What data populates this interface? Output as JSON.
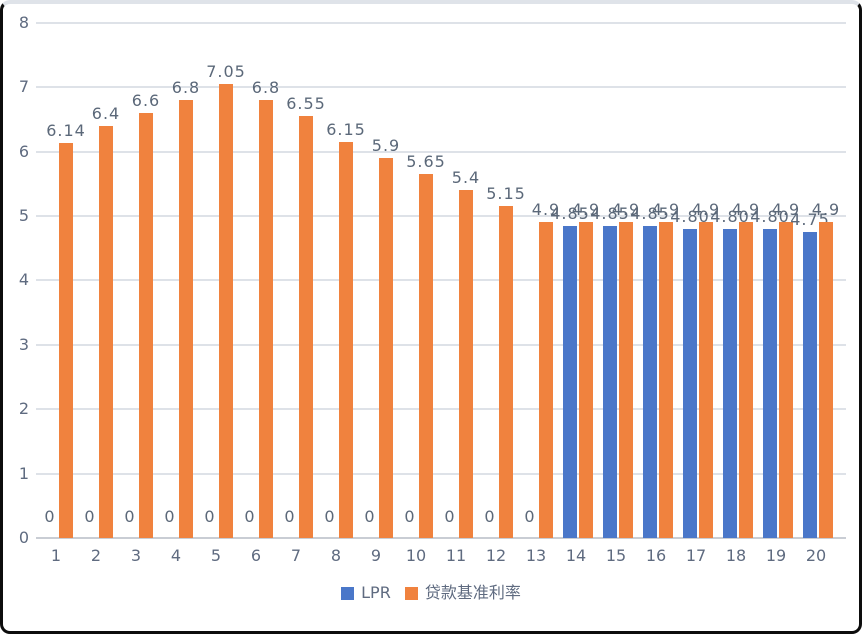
{
  "chart_data": {
    "type": "bar",
    "title": "",
    "xlabel": "",
    "ylabel": "",
    "categories": [
      "1",
      "2",
      "3",
      "4",
      "5",
      "6",
      "7",
      "8",
      "9",
      "10",
      "11",
      "12",
      "13",
      "14",
      "15",
      "16",
      "17",
      "18",
      "19",
      "20"
    ],
    "series": [
      {
        "name": "LPR",
        "color": "#4a77c9",
        "values": [
          0,
          0,
          0,
          0,
          0,
          0,
          0,
          0,
          0,
          0,
          0,
          0,
          0,
          4.85,
          4.85,
          4.85,
          4.8,
          4.8,
          4.8,
          4.75
        ],
        "labels": [
          "0",
          "0",
          "0",
          "0",
          "0",
          "0",
          "0",
          "0",
          "0",
          "0",
          "0",
          "0",
          "0",
          "4.85",
          "4.85",
          "4.85",
          "4.80",
          "4.80",
          "4.80",
          "4.75"
        ]
      },
      {
        "name": "贷款基准利率",
        "color": "#f0823e",
        "values": [
          6.14,
          6.4,
          6.6,
          6.8,
          7.05,
          6.8,
          6.55,
          6.15,
          5.9,
          5.65,
          5.4,
          5.15,
          4.9,
          4.9,
          4.9,
          4.9,
          4.9,
          4.9,
          4.9,
          4.9
        ],
        "labels": [
          "6.14",
          "6.4",
          "6.6",
          "6.8",
          "7.05",
          "6.8",
          "6.55",
          "6.15",
          "5.9",
          "5.65",
          "5.4",
          "5.15",
          "4.9",
          "4.9",
          "4.9",
          "4.9",
          "4.9",
          "4.9",
          "4.9",
          "4.9"
        ]
      }
    ],
    "ylim": [
      0,
      8
    ],
    "yticks": [
      0,
      1,
      2,
      3,
      4,
      5,
      6,
      7,
      8
    ],
    "grid": "horizontal",
    "legend_position": "bottom-center",
    "label_color": "#5b6879",
    "axis_text_color": "#5f6b80",
    "gridline_color": "#dee2e8",
    "baseline_color": "#c9cdd4"
  }
}
